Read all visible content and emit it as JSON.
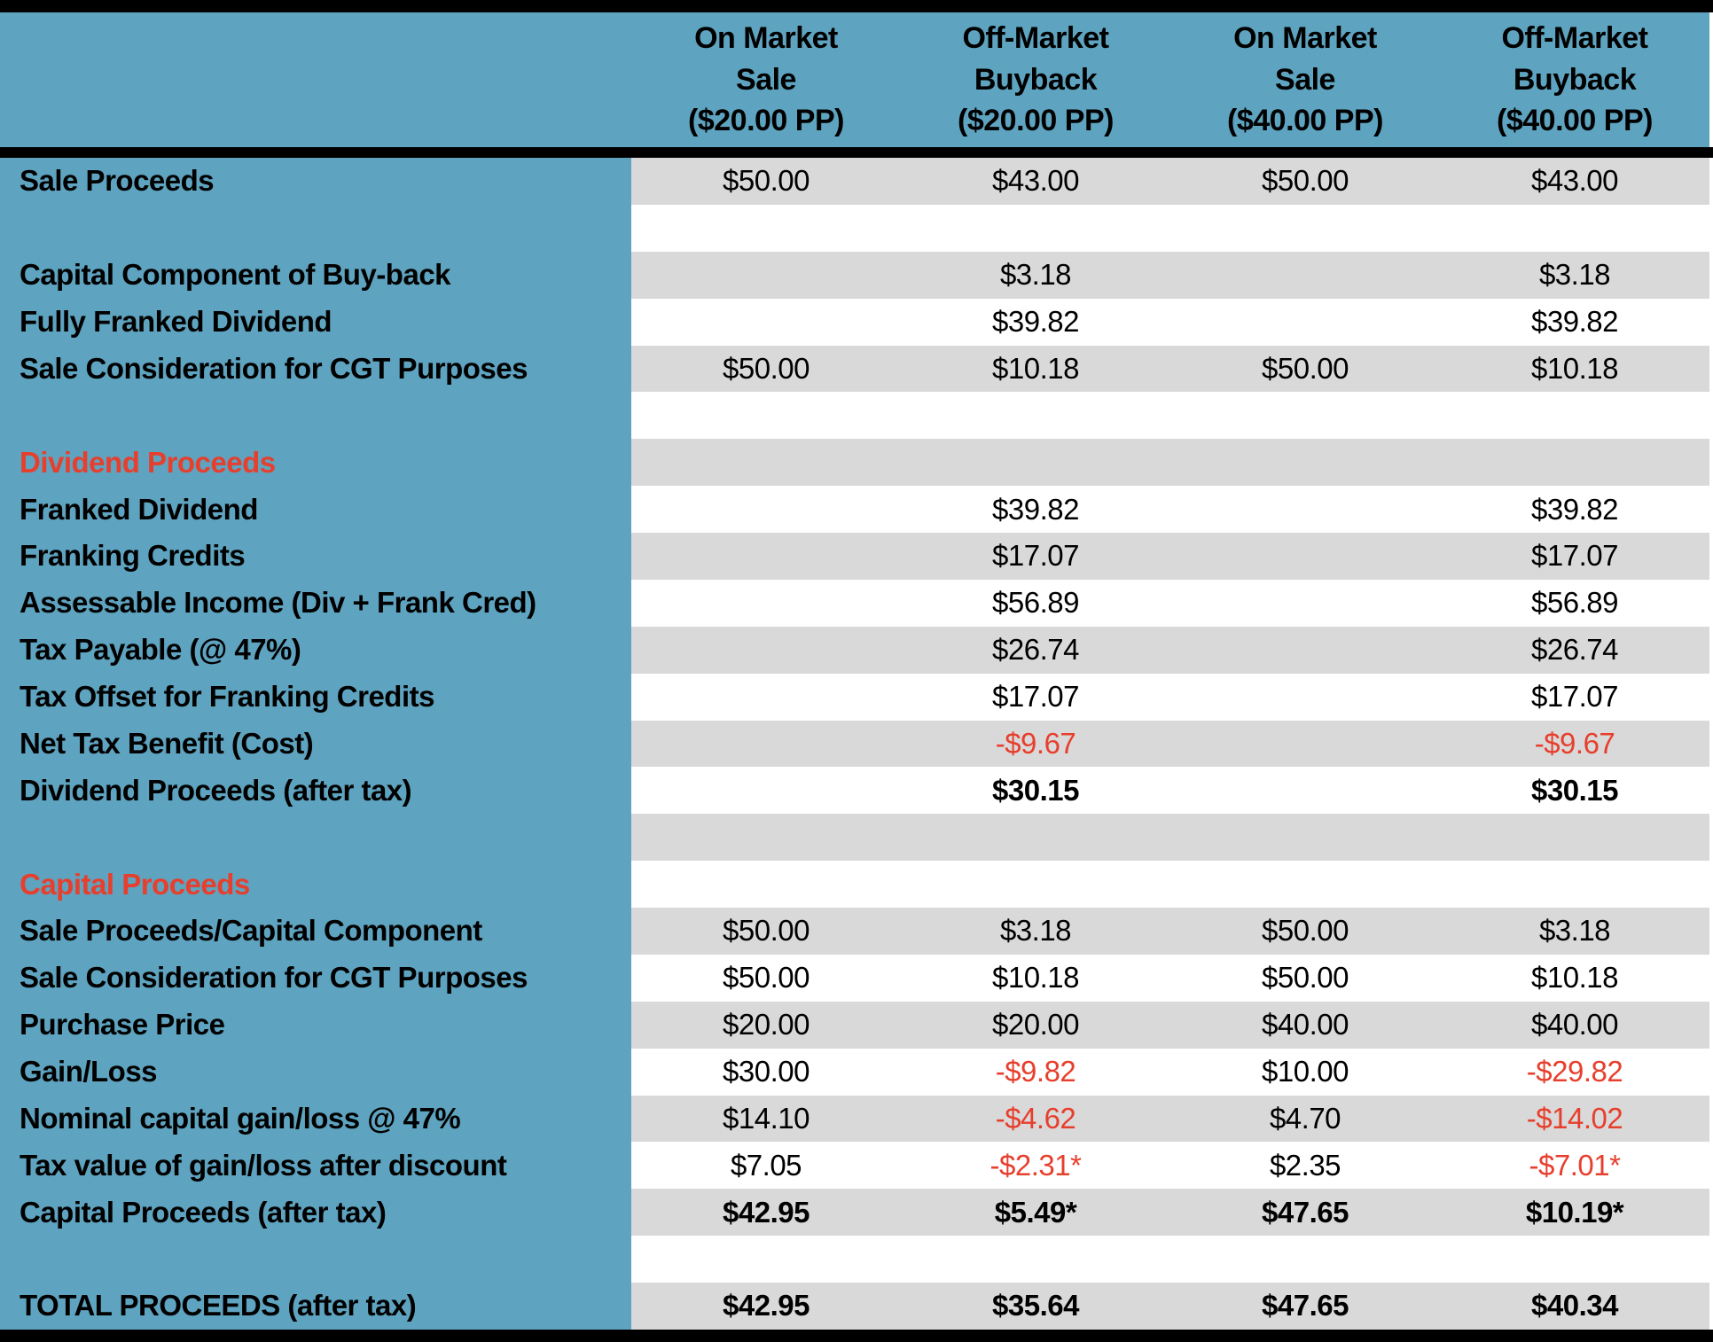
{
  "colors": {
    "teal_panel": "#5EA3BF",
    "accent_red": "#E73F2D",
    "row_gray": "#D9D9D9",
    "border_black": "#000000"
  },
  "table": {
    "header": {
      "columns": [
        {
          "label": "On Market\nSale\n($20.00 PP)"
        },
        {
          "label": "Off-Market\nBuyback\n($20.00 PP)"
        },
        {
          "label": "On Market\nSale\n($40.00 PP)"
        },
        {
          "label": "Off-Market\nBuyback\n($40.00 PP)"
        }
      ]
    },
    "rows": [
      {
        "label": "Sale Proceeds",
        "section": false,
        "bold_values": false,
        "values": [
          "$50.00",
          "$43.00",
          "$50.00",
          "$43.00"
        ]
      },
      {
        "label": "",
        "section": false,
        "bold_values": false,
        "values": [
          "",
          "",
          "",
          ""
        ]
      },
      {
        "label": "Capital Component of Buy-back",
        "section": false,
        "bold_values": false,
        "values": [
          "",
          "$3.18",
          "",
          "$3.18"
        ]
      },
      {
        "label": "Fully Franked Dividend",
        "section": false,
        "bold_values": false,
        "values": [
          "",
          "$39.82",
          "",
          "$39.82"
        ]
      },
      {
        "label": "Sale Consideration for CGT Purposes",
        "section": false,
        "bold_values": false,
        "values": [
          "$50.00",
          "$10.18",
          "$50.00",
          "$10.18"
        ]
      },
      {
        "label": "",
        "section": false,
        "bold_values": false,
        "values": [
          "",
          "",
          "",
          ""
        ]
      },
      {
        "label": "Dividend Proceeds",
        "section": true,
        "bold_values": false,
        "values": [
          "",
          "",
          "",
          ""
        ]
      },
      {
        "label": "Franked Dividend",
        "section": false,
        "bold_values": false,
        "values": [
          "",
          "$39.82",
          "",
          "$39.82"
        ]
      },
      {
        "label": "Franking Credits",
        "section": false,
        "bold_values": false,
        "values": [
          "",
          "$17.07",
          "",
          "$17.07"
        ]
      },
      {
        "label": "Assessable Income (Div + Frank Cred)",
        "section": false,
        "bold_values": false,
        "values": [
          "",
          "$56.89",
          "",
          "$56.89"
        ]
      },
      {
        "label": "Tax Payable (@ 47%)",
        "section": false,
        "bold_values": false,
        "values": [
          "",
          "$26.74",
          "",
          "$26.74"
        ]
      },
      {
        "label": "Tax Offset for Franking Credits",
        "section": false,
        "bold_values": false,
        "values": [
          "",
          "$17.07",
          "",
          "$17.07"
        ]
      },
      {
        "label": "Net Tax Benefit (Cost)",
        "section": false,
        "bold_values": false,
        "values": [
          "",
          "-$9.67",
          "",
          "-$9.67"
        ]
      },
      {
        "label": "Dividend Proceeds (after tax)",
        "section": false,
        "bold_values": true,
        "values": [
          "",
          "$30.15",
          "",
          "$30.15"
        ]
      },
      {
        "label": "",
        "section": false,
        "bold_values": false,
        "values": [
          "",
          "",
          "",
          ""
        ]
      },
      {
        "label": "Capital Proceeds",
        "section": true,
        "bold_values": false,
        "values": [
          "",
          "",
          "",
          ""
        ]
      },
      {
        "label": "Sale Proceeds/Capital Component",
        "section": false,
        "bold_values": false,
        "values": [
          "$50.00",
          "$3.18",
          "$50.00",
          "$3.18"
        ]
      },
      {
        "label": "Sale Consideration for CGT Purposes",
        "section": false,
        "bold_values": false,
        "values": [
          "$50.00",
          "$10.18",
          "$50.00",
          "$10.18"
        ]
      },
      {
        "label": "Purchase Price",
        "section": false,
        "bold_values": false,
        "values": [
          "$20.00",
          "$20.00",
          "$40.00",
          "$40.00"
        ]
      },
      {
        "label": "Gain/Loss",
        "section": false,
        "bold_values": false,
        "values": [
          "$30.00",
          "-$9.82",
          "$10.00",
          "-$29.82"
        ]
      },
      {
        "label": "Nominal capital gain/loss @ 47%",
        "section": false,
        "bold_values": false,
        "values": [
          "$14.10",
          "-$4.62",
          "$4.70",
          "-$14.02"
        ]
      },
      {
        "label": "Tax value of gain/loss after discount",
        "section": false,
        "bold_values": false,
        "values": [
          "$7.05",
          "-$2.31*",
          "$2.35",
          "-$7.01*"
        ]
      },
      {
        "label": "Capital Proceeds (after tax)",
        "section": false,
        "bold_values": true,
        "values": [
          "$42.95",
          "$5.49*",
          "$47.65",
          "$10.19*"
        ]
      },
      {
        "label": "",
        "section": false,
        "bold_values": false,
        "values": [
          "",
          "",
          "",
          ""
        ]
      },
      {
        "label": "TOTAL PROCEEDS (after tax)",
        "section": false,
        "bold_values": true,
        "values": [
          "$42.95",
          "$35.64",
          "$47.65",
          "$40.34"
        ]
      }
    ]
  }
}
